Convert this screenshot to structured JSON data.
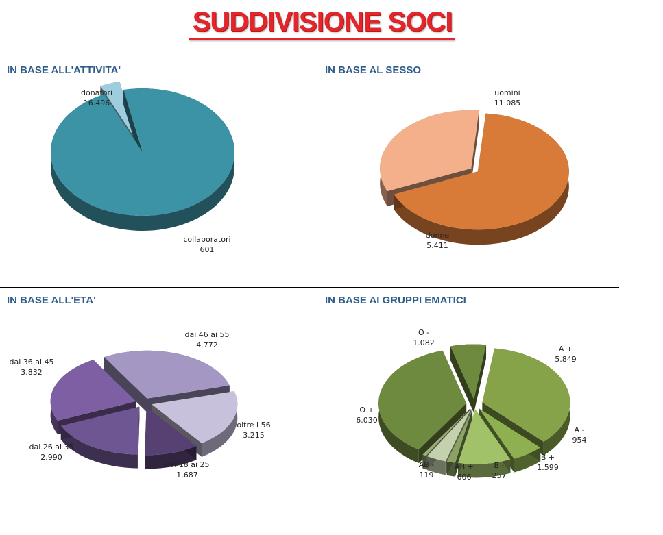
{
  "title": "SUDDIVISIONE SOCI",
  "chart_data": [
    {
      "type": "pie",
      "title": "IN BASE ALL'ATTIVITA'",
      "categories": [
        "donatori",
        "collaboratori"
      ],
      "values": [
        16496,
        601
      ],
      "value_labels": [
        "16.496",
        "601"
      ],
      "colors": [
        "#3d93a6",
        "#9fcde0"
      ]
    },
    {
      "type": "pie",
      "title": "IN BASE AL SESSO",
      "categories": [
        "uomini",
        "donne"
      ],
      "values": [
        11085,
        5411
      ],
      "value_labels": [
        "11.085",
        "5.411"
      ],
      "colors": [
        "#d97b38",
        "#f4b08a"
      ]
    },
    {
      "type": "pie",
      "title": "IN BASE ALL'ETA'",
      "categories": [
        "dai 46 ai 55",
        "oltre i 56",
        "dai 18 ai 25",
        "dai 26 ai 35",
        "dai 36 ai 45"
      ],
      "values": [
        4772,
        3215,
        1687,
        2990,
        3832
      ],
      "value_labels": [
        "4.772",
        "3.215",
        "1.687",
        "2.990",
        "3.832"
      ],
      "colors": [
        "#a597c4",
        "#c8c1dc",
        "#574172",
        "#6e5692",
        "#7f5fa3"
      ]
    },
    {
      "type": "pie",
      "title": "IN BASE AI GRUPPI EMATICI",
      "categories": [
        "A +",
        "A -",
        "B +",
        "B -",
        "AB +",
        "AB -",
        "O +",
        "O -"
      ],
      "values": [
        5849,
        954,
        1599,
        257,
        606,
        119,
        6030,
        1082
      ],
      "value_labels": [
        "5.849",
        "954",
        "1.599",
        "257",
        "606",
        "119",
        "6.030",
        "1.082"
      ],
      "colors": [
        "#86a34a",
        "#8fb050",
        "#a2c26a",
        "#8aa262",
        "#c3d1ad",
        "#9cae7a",
        "#6e8a3e",
        "#6e8a3e"
      ]
    }
  ]
}
